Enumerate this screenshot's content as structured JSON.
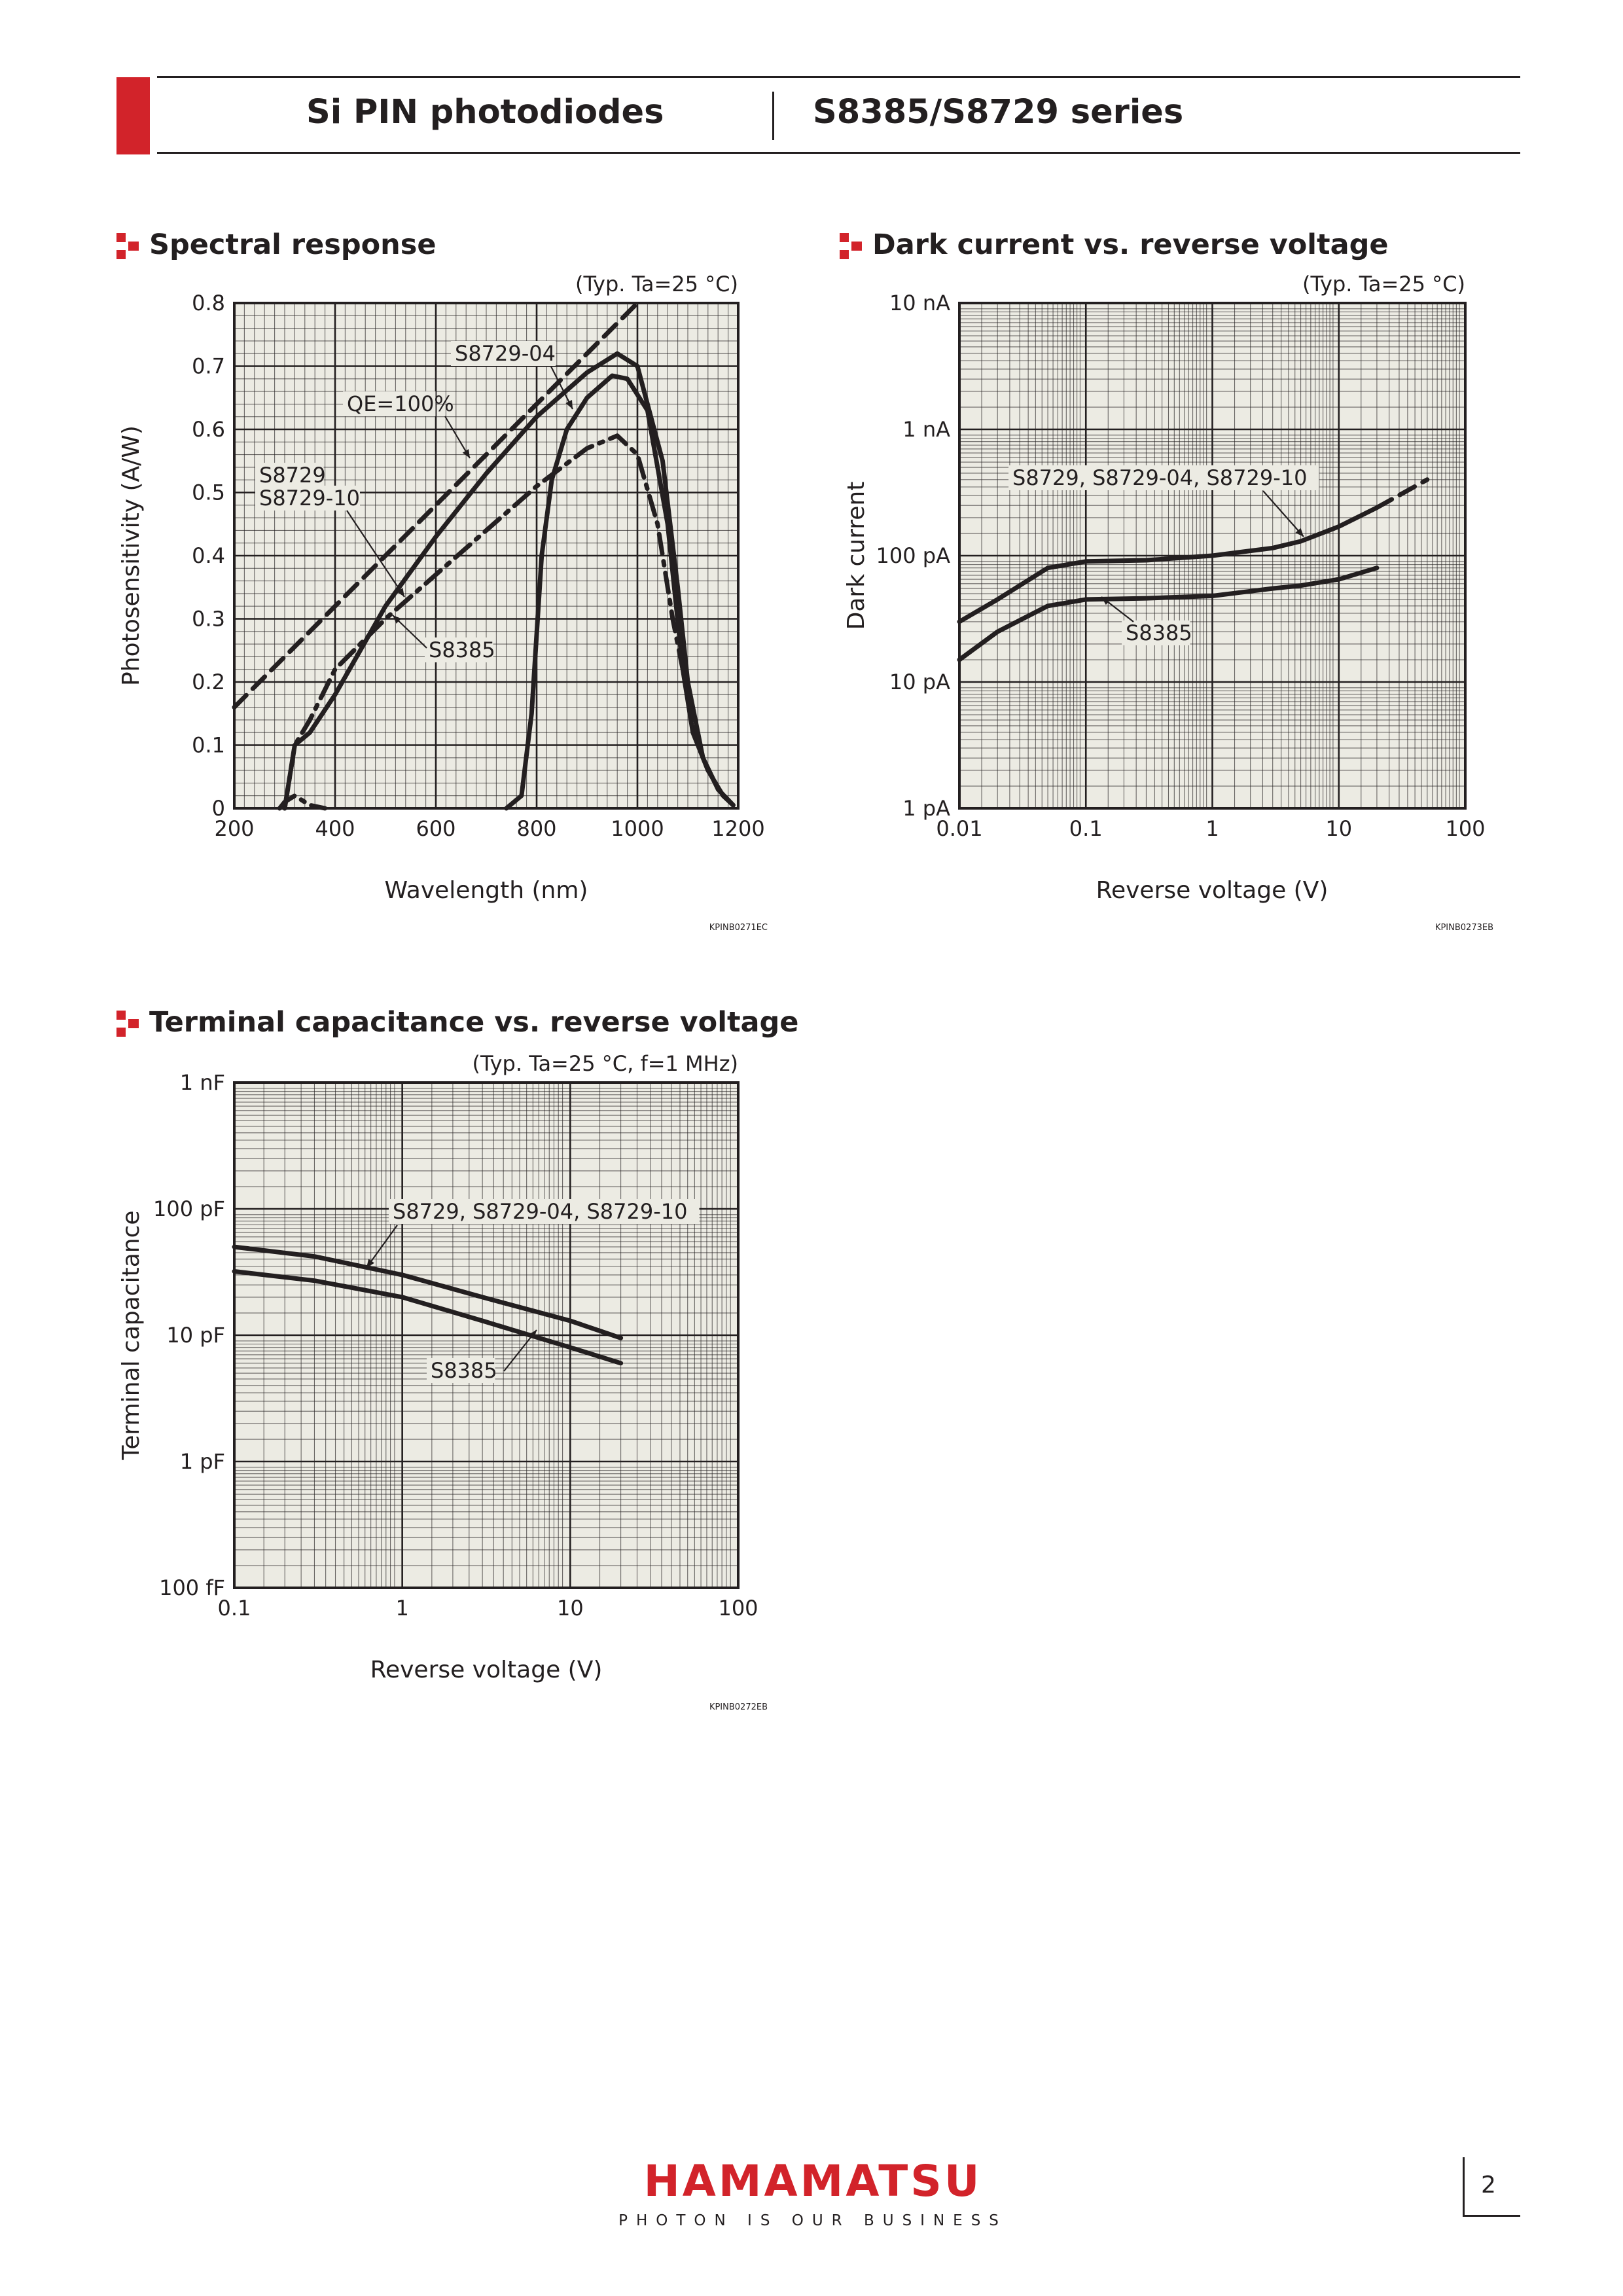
{
  "header": {
    "left_title": "Si PIN photodiodes",
    "right_title": "S8385/S8729 series"
  },
  "colors": {
    "accent": "#d2232a",
    "ink": "#231f20",
    "plot_background": "#ecebe3"
  },
  "sections": {
    "spectral": {
      "title": "Spectral response",
      "condition": "(Typ. Ta=25 °C)",
      "code": "KPINB0271EC"
    },
    "dark": {
      "title": "Dark current vs. reverse voltage",
      "condition": "(Typ. Ta=25 °C)",
      "code": "KPINB0273EB"
    },
    "cap": {
      "title": "Terminal capacitance vs. reverse voltage",
      "condition": "(Typ. Ta=25 °C, f=1 MHz)",
      "code": "KPINB0272EB"
    }
  },
  "chart_data": [
    {
      "id": "spectral",
      "type": "line",
      "xlabel": "Wavelength (nm)",
      "ylabel": "Photosensitivity (A/W)",
      "xlim": [
        200,
        1200
      ],
      "ylim": [
        0,
        0.8
      ],
      "x_ticks": [
        "200",
        "400",
        "600",
        "800",
        "1000",
        "1200"
      ],
      "y_ticks": [
        "0",
        "0.1",
        "0.2",
        "0.3",
        "0.4",
        "0.5",
        "0.6",
        "0.7",
        "0.8"
      ],
      "x_scale": "linear",
      "y_scale": "linear",
      "grid": true,
      "series": [
        {
          "name": "QE=100%",
          "style": "dashed",
          "points": [
            [
              200,
              0.16
            ],
            [
              1000,
              0.8
            ]
          ]
        },
        {
          "name": "S8729",
          "style": "solid",
          "points": [
            [
              300,
              0
            ],
            [
              310,
              0.05
            ],
            [
              320,
              0.1
            ],
            [
              350,
              0.12
            ],
            [
              400,
              0.18
            ],
            [
              500,
              0.32
            ],
            [
              600,
              0.43
            ],
            [
              700,
              0.53
            ],
            [
              800,
              0.62
            ],
            [
              900,
              0.69
            ],
            [
              960,
              0.72
            ],
            [
              1000,
              0.7
            ],
            [
              1050,
              0.55
            ],
            [
              1080,
              0.35
            ],
            [
              1100,
              0.2
            ],
            [
              1130,
              0.08
            ],
            [
              1160,
              0.03
            ],
            [
              1190,
              0.005
            ]
          ]
        },
        {
          "name": "S8729-04",
          "style": "solid",
          "points": [
            [
              740,
              0
            ],
            [
              770,
              0.02
            ],
            [
              790,
              0.15
            ],
            [
              810,
              0.4
            ],
            [
              830,
              0.52
            ],
            [
              860,
              0.6
            ],
            [
              900,
              0.65
            ],
            [
              950,
              0.685
            ],
            [
              980,
              0.68
            ],
            [
              1020,
              0.63
            ],
            [
              1060,
              0.45
            ],
            [
              1090,
              0.22
            ],
            [
              1110,
              0.12
            ],
            [
              1140,
              0.06
            ],
            [
              1170,
              0.02
            ],
            [
              1190,
              0.005
            ]
          ]
        },
        {
          "name": "S8729-10",
          "style": "dash-dot",
          "points": [
            [
              290,
              0
            ],
            [
              300,
              0.01
            ],
            [
              320,
              0.02
            ],
            [
              350,
              0.005
            ],
            [
              380,
              0
            ]
          ]
        },
        {
          "name": "S8385",
          "style": "dash-dot",
          "points": [
            [
              300,
              0
            ],
            [
              310,
              0.05
            ],
            [
              320,
              0.1
            ],
            [
              350,
              0.14
            ],
            [
              400,
              0.22
            ],
            [
              500,
              0.3
            ],
            [
              600,
              0.37
            ],
            [
              700,
              0.44
            ],
            [
              800,
              0.51
            ],
            [
              900,
              0.57
            ],
            [
              960,
              0.59
            ],
            [
              1000,
              0.56
            ],
            [
              1040,
              0.45
            ],
            [
              1070,
              0.3
            ],
            [
              1100,
              0.18
            ],
            [
              1130,
              0.08
            ],
            [
              1160,
              0.03
            ],
            [
              1190,
              0.005
            ]
          ]
        }
      ],
      "labels": [
        "S8729-04",
        "QE=100%",
        "S8729",
        "S8729-10",
        "S8385"
      ]
    },
    {
      "id": "dark",
      "type": "line",
      "xlabel": "Reverse voltage (V)",
      "ylabel": "Dark current",
      "xlim": [
        0.01,
        100
      ],
      "ylim": [
        1,
        10000
      ],
      "y_unit": "pA",
      "x_ticks": [
        "0.01",
        "0.1",
        "1",
        "10",
        "100"
      ],
      "y_ticks": [
        "1 pA",
        "10 pA",
        "100 pA",
        "1 nA",
        "10 nA"
      ],
      "x_scale": "log",
      "y_scale": "log",
      "grid": true,
      "series": [
        {
          "name": "S8729, S8729-04, S8729-10",
          "style": "solid",
          "points": [
            [
              0.01,
              30
            ],
            [
              0.02,
              45
            ],
            [
              0.05,
              80
            ],
            [
              0.1,
              90
            ],
            [
              0.3,
              92
            ],
            [
              1,
              100
            ],
            [
              3,
              115
            ],
            [
              5,
              130
            ],
            [
              10,
              170
            ],
            [
              20,
              240
            ]
          ]
        },
        {
          "name": "S8729, S8729-04, S8729-10",
          "style": "dashed",
          "points": [
            [
              20,
              240
            ],
            [
              50,
              400
            ]
          ]
        },
        {
          "name": "S8385",
          "style": "solid",
          "points": [
            [
              0.01,
              15
            ],
            [
              0.02,
              25
            ],
            [
              0.05,
              40
            ],
            [
              0.1,
              45
            ],
            [
              0.3,
              46
            ],
            [
              1,
              48
            ],
            [
              3,
              55
            ],
            [
              5,
              58
            ],
            [
              10,
              65
            ],
            [
              20,
              80
            ]
          ]
        }
      ],
      "labels": [
        "S8729, S8729-04, S8729-10",
        "S8385"
      ]
    },
    {
      "id": "cap",
      "type": "line",
      "xlabel": "Reverse voltage (V)",
      "ylabel": "Terminal capacitance",
      "xlim": [
        0.1,
        100
      ],
      "ylim": [
        0.1,
        1000
      ],
      "y_unit": "pF",
      "x_ticks": [
        "0.1",
        "1",
        "10",
        "100"
      ],
      "y_ticks": [
        "100 fF",
        "1 pF",
        "10 pF",
        "100 pF",
        "1 nF"
      ],
      "x_scale": "log",
      "y_scale": "log",
      "grid": true,
      "series": [
        {
          "name": "S8729, S8729-04, S8729-10",
          "style": "solid",
          "points": [
            [
              0.1,
              50
            ],
            [
              0.3,
              42
            ],
            [
              1,
              30
            ],
            [
              3,
              20
            ],
            [
              10,
              13
            ],
            [
              20,
              9.5
            ]
          ]
        },
        {
          "name": "S8385",
          "style": "solid",
          "points": [
            [
              0.1,
              32
            ],
            [
              0.3,
              27
            ],
            [
              1,
              20
            ],
            [
              3,
              13
            ],
            [
              10,
              8
            ],
            [
              20,
              6
            ]
          ]
        }
      ],
      "labels": [
        "S8729, S8729-04, S8729-10",
        "S8385"
      ]
    }
  ],
  "footer": {
    "logo": "HAMAMATSU",
    "tagline": "PHOTON IS OUR BUSINESS",
    "page_number": "2"
  }
}
